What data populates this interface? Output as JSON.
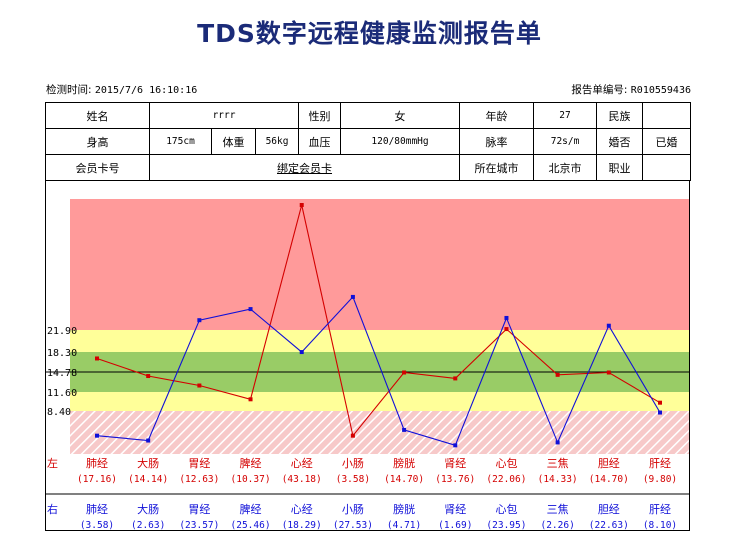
{
  "title": "TDS数字远程健康监测报告单",
  "meta": {
    "time_label": "检测时间:",
    "time_value": "2015/7/6 16:10:16",
    "report_no_label": "报告单编号:",
    "report_no_value": "R010559436"
  },
  "info": {
    "name_label": "姓名",
    "name_value": "rrrr",
    "gender_label": "性别",
    "gender_value": "女",
    "age_label": "年龄",
    "age_value": "27",
    "ethnicity_label": "民族",
    "ethnicity_value": "",
    "height_label": "身高",
    "height_value": "175cm",
    "weight_label": "体重",
    "weight_value": "56kg",
    "bp_label": "血压",
    "bp_value": "120/80mmHg",
    "pulse_label": "脉率",
    "pulse_value": "72s/m",
    "marital_label": "婚否",
    "marital_value": "已婚",
    "card_label": "会员卡号",
    "card_value": "",
    "bind_label": "绑定会员卡",
    "city_label": "所在城市",
    "city_value": "北京市",
    "job_label": "职业",
    "job_value": ""
  },
  "chart_data": {
    "type": "line",
    "y_ticks": [
      "21.90",
      "18.30",
      "14.78",
      "11.60",
      "8.40"
    ],
    "bands": [
      {
        "from": 21.9,
        "to": 45.0,
        "color": "#ff9a9a"
      },
      {
        "from": 18.3,
        "to": 21.9,
        "color": "#ffff99"
      },
      {
        "from": 14.78,
        "to": 18.3,
        "color": "#99cc66"
      },
      {
        "from": 11.6,
        "to": 14.78,
        "color": "#99cc66"
      },
      {
        "from": 8.4,
        "to": 11.6,
        "color": "#ffff99"
      },
      {
        "from": 0,
        "to": 8.4,
        "color": "hatched"
      }
    ],
    "reference_line": 14.78,
    "categories": [
      "肺经",
      "大肠",
      "胃经",
      "脾经",
      "心经",
      "小肠",
      "膀胱",
      "肾经",
      "心包",
      "三焦",
      "胆经",
      "肝经"
    ],
    "series": [
      {
        "name": "左",
        "color": "#d40000",
        "values": [
          17.16,
          14.14,
          12.63,
          10.37,
          43.18,
          3.58,
          14.7,
          13.76,
          22.06,
          14.33,
          14.7,
          9.8
        ],
        "labels": [
          "(17.16)",
          "(14.14)",
          "(12.63)",
          "(10.37)",
          "(43.18)",
          "(3.58)",
          "(14.70)",
          "(13.76)",
          "(22.06)",
          "(14.33)",
          "(14.70)",
          "(9.80)"
        ]
      },
      {
        "name": "右",
        "color": "#1010d8",
        "values": [
          3.58,
          2.63,
          23.57,
          25.46,
          18.29,
          27.53,
          4.71,
          1.69,
          23.95,
          2.26,
          22.63,
          8.1
        ],
        "labels": [
          "(3.58)",
          "(2.63)",
          "(23.57)",
          "(25.46)",
          "(18.29)",
          "(27.53)",
          "(4.71)",
          "(1.69)",
          "(23.95)",
          "(2.26)",
          "(22.63)",
          "(8.10)"
        ]
      }
    ]
  }
}
